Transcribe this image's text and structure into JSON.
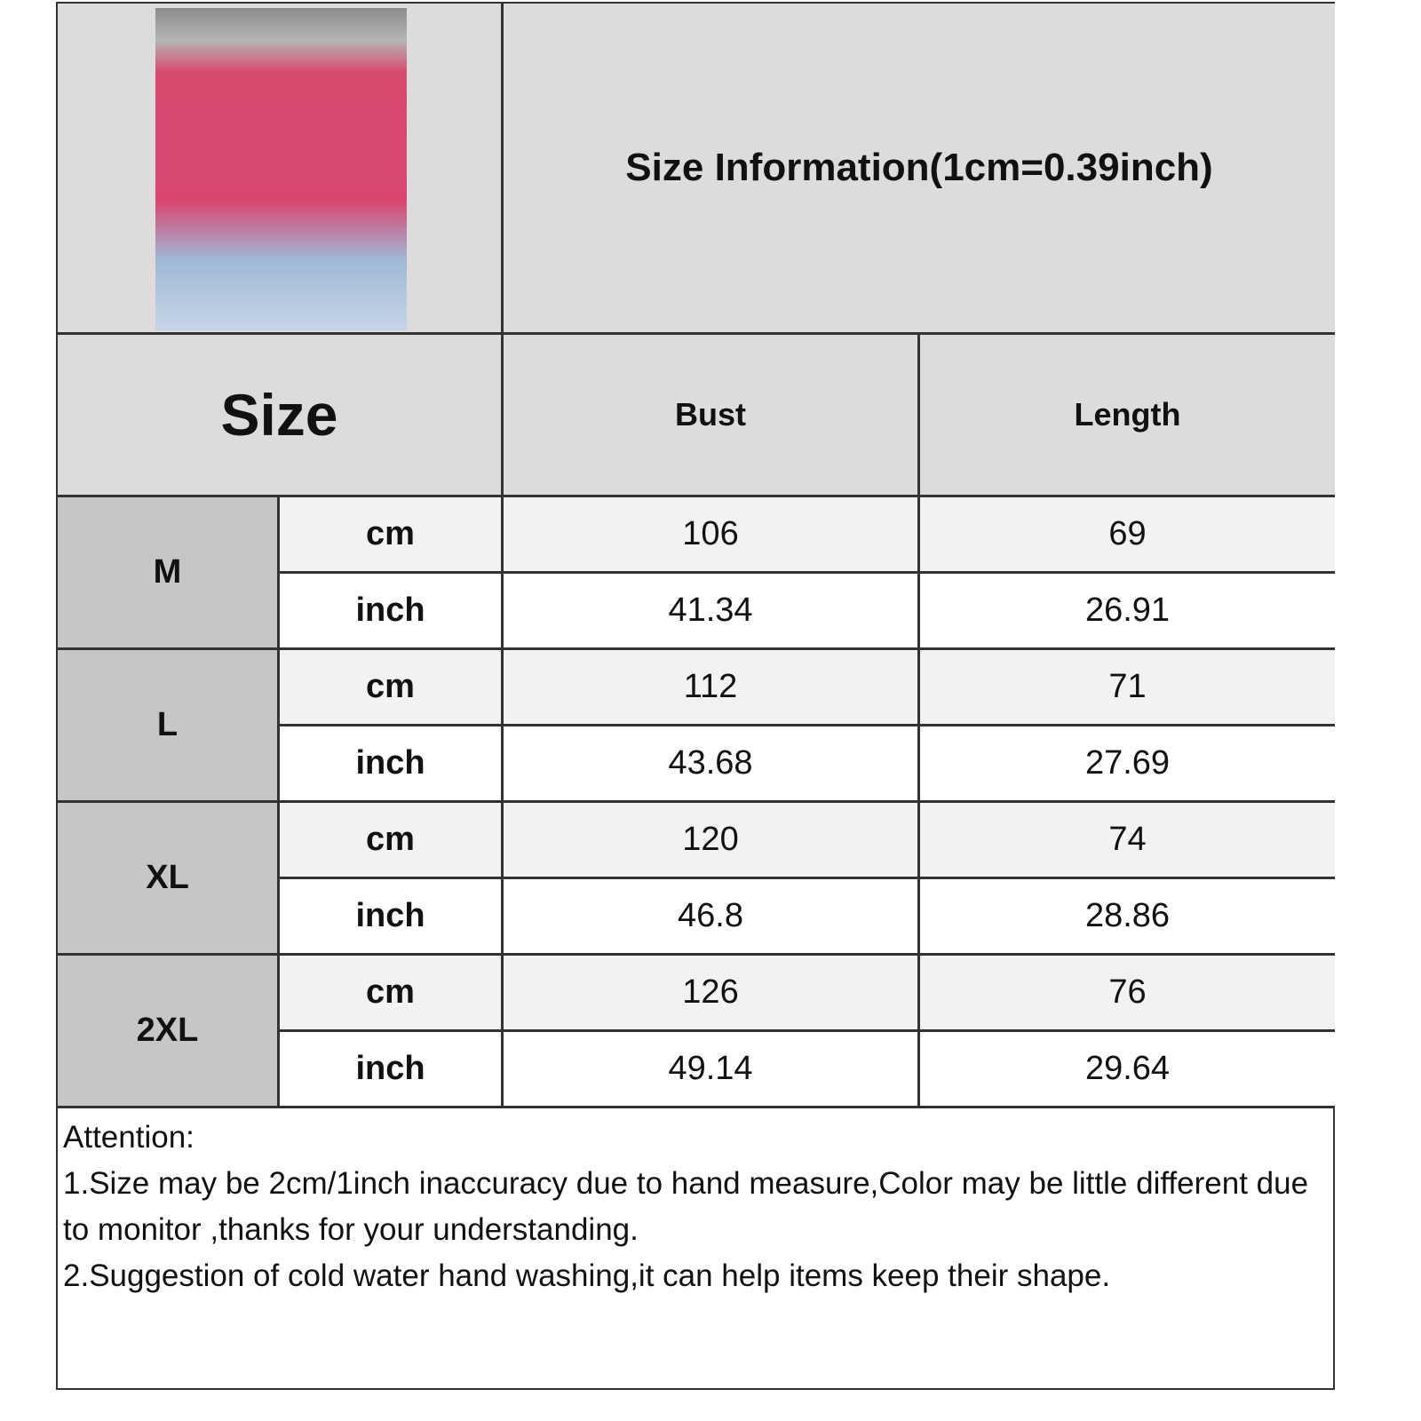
{
  "title": "Size Information(1cm=0.39inch)",
  "header": {
    "size": "Size",
    "bust": "Bust",
    "length": "Length"
  },
  "rows": [
    {
      "size": "M",
      "cm": {
        "unit": "cm",
        "bust": "106",
        "length": "69"
      },
      "inch": {
        "unit": "inch",
        "bust": "41.34",
        "length": "26.91"
      }
    },
    {
      "size": "L",
      "cm": {
        "unit": "cm",
        "bust": "112",
        "length": "71"
      },
      "inch": {
        "unit": "inch",
        "bust": "43.68",
        "length": "27.69"
      }
    },
    {
      "size": "XL",
      "cm": {
        "unit": "cm",
        "bust": "120",
        "length": "74"
      },
      "inch": {
        "unit": "inch",
        "bust": "46.8",
        "length": "28.86"
      }
    },
    {
      "size": "2XL",
      "cm": {
        "unit": "cm",
        "bust": "126",
        "length": "76"
      },
      "inch": {
        "unit": "inch",
        "bust": "49.14",
        "length": "29.64"
      }
    }
  ],
  "notes": {
    "heading": "Attention:",
    "line1": "1.Size may be 2cm/1inch inaccuracy due to hand measure,Color may be little different due to monitor ,thanks for your understanding.",
    "line2": "2.Suggestion of cold water hand washing,it can help items keep their shape."
  }
}
